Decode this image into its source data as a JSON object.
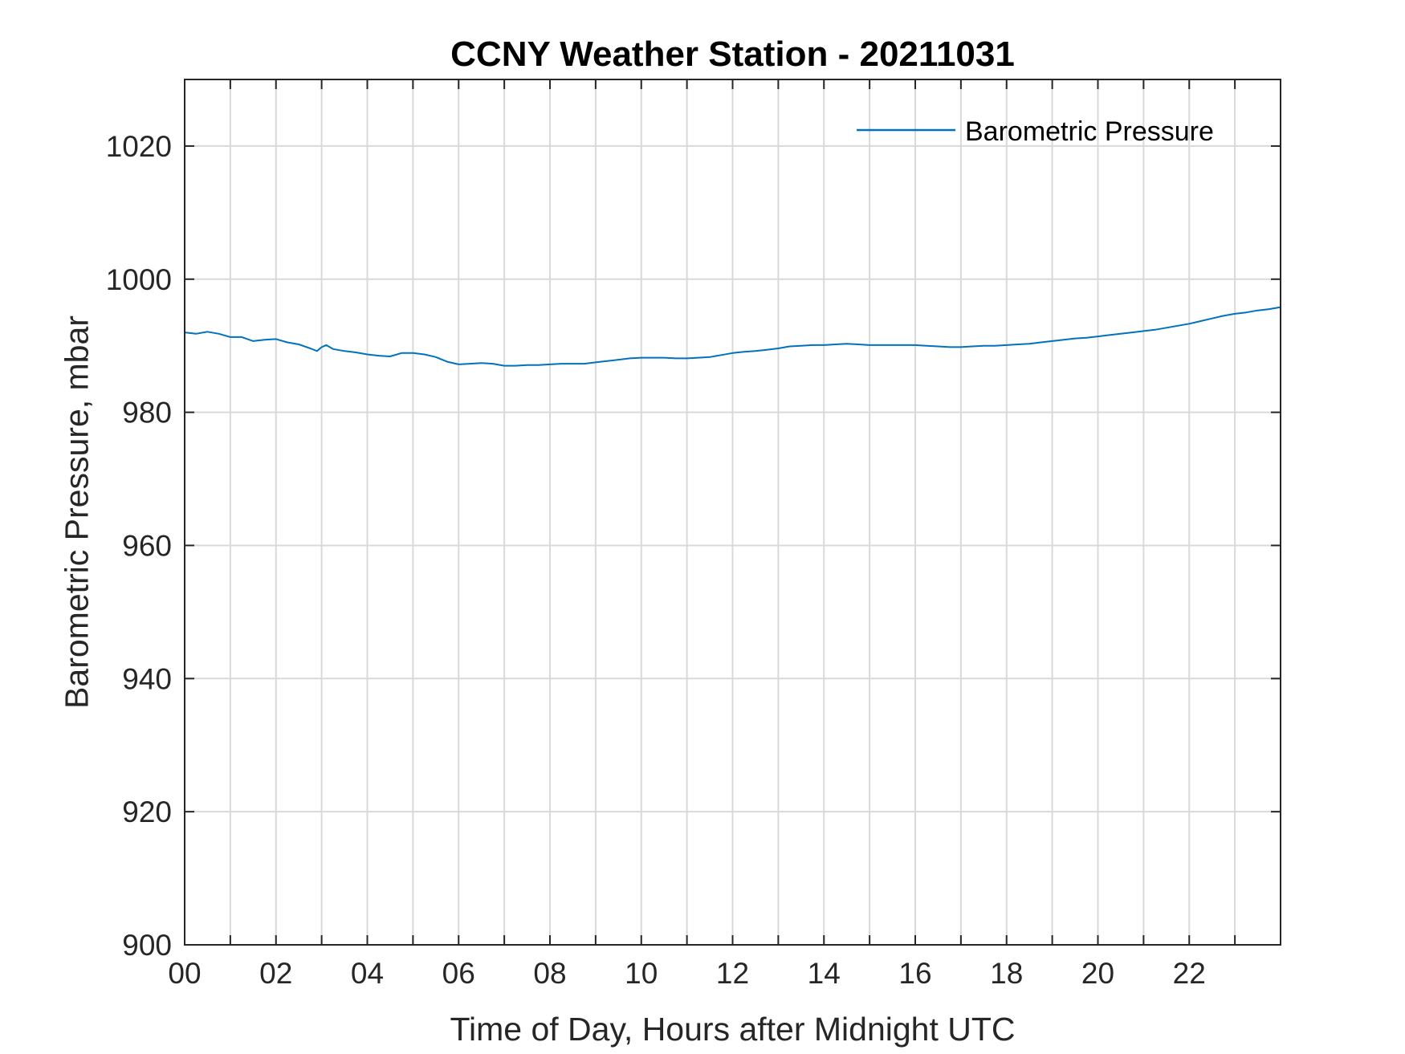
{
  "chart_data": {
    "type": "line",
    "title": "CCNY Weather Station - 20211031",
    "xlabel": "Time of Day, Hours after Midnight UTC",
    "ylabel": "Barometric Pressure, mbar",
    "xlim": [
      0,
      24
    ],
    "ylim": [
      900,
      1030
    ],
    "x_ticks": [
      0,
      2,
      4,
      6,
      8,
      10,
      12,
      14,
      16,
      18,
      20,
      22
    ],
    "x_tick_labels": [
      "00",
      "02",
      "04",
      "06",
      "08",
      "10",
      "12",
      "14",
      "16",
      "18",
      "20",
      "22"
    ],
    "x_minor_gridlines": [
      1,
      3,
      5,
      7,
      9,
      11,
      13,
      15,
      17,
      19,
      21,
      23
    ],
    "y_ticks": [
      900,
      920,
      940,
      960,
      980,
      1000,
      1020
    ],
    "y_tick_labels": [
      "900",
      "920",
      "940",
      "960",
      "980",
      "1000",
      "1020"
    ],
    "grid": true,
    "legend_position": "top-right",
    "series": [
      {
        "name": "Barometric Pressure",
        "color": "#0072BD",
        "x": [
          0,
          0.25,
          0.5,
          0.75,
          1.0,
          1.25,
          1.5,
          1.75,
          2.0,
          2.25,
          2.5,
          2.75,
          2.9,
          3.0,
          3.1,
          3.25,
          3.5,
          3.75,
          4.0,
          4.25,
          4.5,
          4.75,
          5.0,
          5.25,
          5.5,
          5.75,
          6.0,
          6.25,
          6.5,
          6.75,
          7.0,
          7.25,
          7.5,
          7.75,
          8.0,
          8.25,
          8.5,
          8.75,
          9.0,
          9.25,
          9.5,
          9.75,
          10.0,
          10.25,
          10.5,
          10.75,
          11.0,
          11.25,
          11.5,
          11.75,
          12.0,
          12.25,
          12.5,
          12.75,
          13.0,
          13.25,
          13.5,
          13.75,
          14.0,
          14.25,
          14.5,
          14.75,
          15.0,
          15.25,
          15.5,
          15.75,
          16.0,
          16.25,
          16.5,
          16.75,
          17.0,
          17.25,
          17.5,
          17.75,
          18.0,
          18.25,
          18.5,
          18.75,
          19.0,
          19.25,
          19.5,
          19.75,
          20.0,
          20.25,
          20.5,
          20.75,
          21.0,
          21.25,
          21.5,
          21.75,
          22.0,
          22.25,
          22.5,
          22.75,
          23.0,
          23.25,
          23.5,
          23.75,
          24.0
        ],
        "y": [
          992.0,
          991.8,
          992.1,
          991.8,
          991.3,
          991.3,
          990.7,
          990.9,
          991.0,
          990.5,
          990.2,
          989.6,
          989.2,
          989.8,
          990.1,
          989.5,
          989.2,
          989.0,
          988.7,
          988.5,
          988.4,
          988.9,
          988.9,
          988.7,
          988.3,
          987.6,
          987.2,
          987.3,
          987.4,
          987.3,
          987.0,
          987.0,
          987.1,
          987.1,
          987.2,
          987.3,
          987.3,
          987.3,
          987.5,
          987.7,
          987.9,
          988.1,
          988.2,
          988.2,
          988.2,
          988.1,
          988.1,
          988.2,
          988.3,
          988.6,
          988.9,
          989.1,
          989.2,
          989.4,
          989.6,
          989.9,
          990.0,
          990.1,
          990.1,
          990.2,
          990.3,
          990.2,
          990.1,
          990.1,
          990.1,
          990.1,
          990.1,
          990.0,
          989.9,
          989.8,
          989.8,
          989.9,
          990.0,
          990.0,
          990.1,
          990.2,
          990.3,
          990.5,
          990.7,
          990.9,
          991.1,
          991.2,
          991.4,
          991.6,
          991.8,
          992.0,
          992.2,
          992.4,
          992.7,
          993.0,
          993.3,
          993.7,
          994.1,
          994.5,
          994.8,
          995.0,
          995.3,
          995.5,
          995.8
        ]
      }
    ]
  }
}
